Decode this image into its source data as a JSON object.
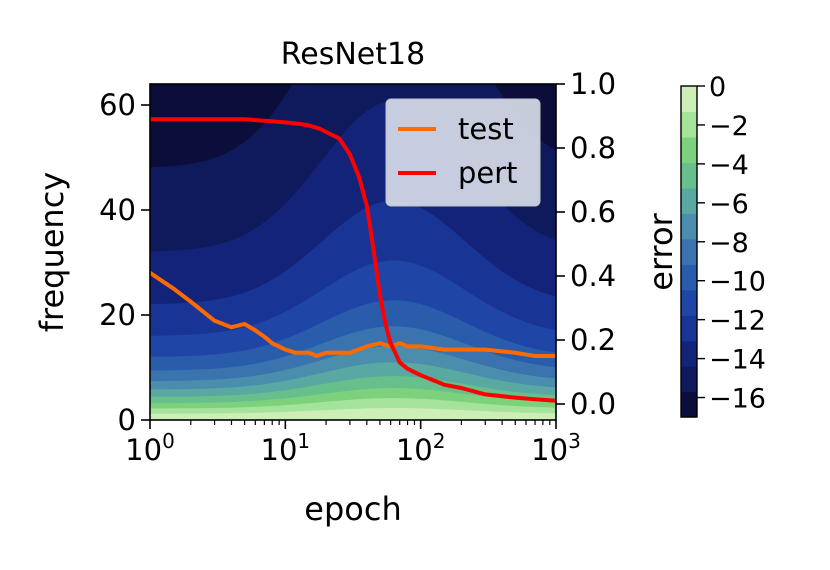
{
  "chart_data": {
    "type": "line",
    "title": "ResNet18",
    "xlabel": "epoch",
    "ylabel_left": "frequency",
    "x_scale": "log",
    "xlim": [
      1,
      1000
    ],
    "ylim_left": [
      0,
      64
    ],
    "ylim_right": [
      -0.05,
      1.0
    ],
    "x_ticks": [
      {
        "value": 1,
        "base": "10",
        "exp": "0"
      },
      {
        "value": 10,
        "base": "10",
        "exp": "1"
      },
      {
        "value": 100,
        "base": "10",
        "exp": "2"
      },
      {
        "value": 1000,
        "base": "10",
        "exp": "3"
      }
    ],
    "y_ticks_left": [
      {
        "value": 0,
        "label": "0"
      },
      {
        "value": 20,
        "label": "20"
      },
      {
        "value": 40,
        "label": "40"
      },
      {
        "value": 60,
        "label": "60"
      }
    ],
    "y_ticks_right": [
      {
        "value": 0.0,
        "label": "0.0"
      },
      {
        "value": 0.2,
        "label": "0.2"
      },
      {
        "value": 0.4,
        "label": "0.4"
      },
      {
        "value": 0.6,
        "label": "0.6"
      },
      {
        "value": 0.8,
        "label": "0.8"
      },
      {
        "value": 1.0,
        "label": "1.0"
      }
    ],
    "heatmap": {
      "type": "heatmap",
      "description_colormap": "dark navy (low) to light green (high)",
      "colors": [
        "#0b0e3a",
        "#0f1a5c",
        "#13237a",
        "#183494",
        "#1f46a6",
        "#2a5cac",
        "#3a73ad",
        "#4a8dad",
        "#5aa8a2",
        "#67c08b",
        "#7dd17c",
        "#a5e29a",
        "#cdefb7"
      ],
      "colorbar_label": "error",
      "colorbar_range": [
        -17,
        0
      ],
      "colorbar_ticks": [
        {
          "value": 0,
          "label": "0"
        },
        {
          "value": -2,
          "label": "−2"
        },
        {
          "value": -4,
          "label": "−4"
        },
        {
          "value": -6,
          "label": "−6"
        },
        {
          "value": -8,
          "label": "−8"
        },
        {
          "value": -10,
          "label": "−10"
        },
        {
          "value": -12,
          "label": "−12"
        },
        {
          "value": -14,
          "label": "−14"
        },
        {
          "value": -16,
          "label": "−16"
        }
      ]
    },
    "legend_position": "top-right",
    "series": [
      {
        "name": "test",
        "color": "#ff6a00",
        "axis": "right",
        "x": [
          1,
          1.5,
          2,
          3,
          4,
          5,
          6,
          7,
          8,
          10,
          12,
          15,
          17,
          20,
          25,
          30,
          40,
          50,
          60,
          70,
          80,
          100,
          150,
          200,
          300,
          500,
          700,
          1000
        ],
        "y": [
          0.41,
          0.36,
          0.32,
          0.26,
          0.24,
          0.25,
          0.23,
          0.21,
          0.19,
          0.17,
          0.16,
          0.16,
          0.15,
          0.16,
          0.16,
          0.16,
          0.18,
          0.19,
          0.18,
          0.19,
          0.18,
          0.18,
          0.17,
          0.17,
          0.17,
          0.16,
          0.15,
          0.15
        ]
      },
      {
        "name": "pert",
        "color": "#ff0000",
        "axis": "right",
        "x": [
          1,
          2,
          3,
          5,
          7,
          10,
          13,
          15,
          18,
          20,
          25,
          30,
          35,
          40,
          45,
          50,
          55,
          60,
          65,
          70,
          80,
          100,
          150,
          200,
          300,
          500,
          700,
          1000
        ],
        "y": [
          0.89,
          0.89,
          0.89,
          0.89,
          0.885,
          0.88,
          0.875,
          0.87,
          0.86,
          0.85,
          0.83,
          0.78,
          0.71,
          0.62,
          0.48,
          0.34,
          0.25,
          0.19,
          0.16,
          0.13,
          0.11,
          0.09,
          0.06,
          0.05,
          0.03,
          0.02,
          0.015,
          0.01
        ]
      }
    ]
  }
}
